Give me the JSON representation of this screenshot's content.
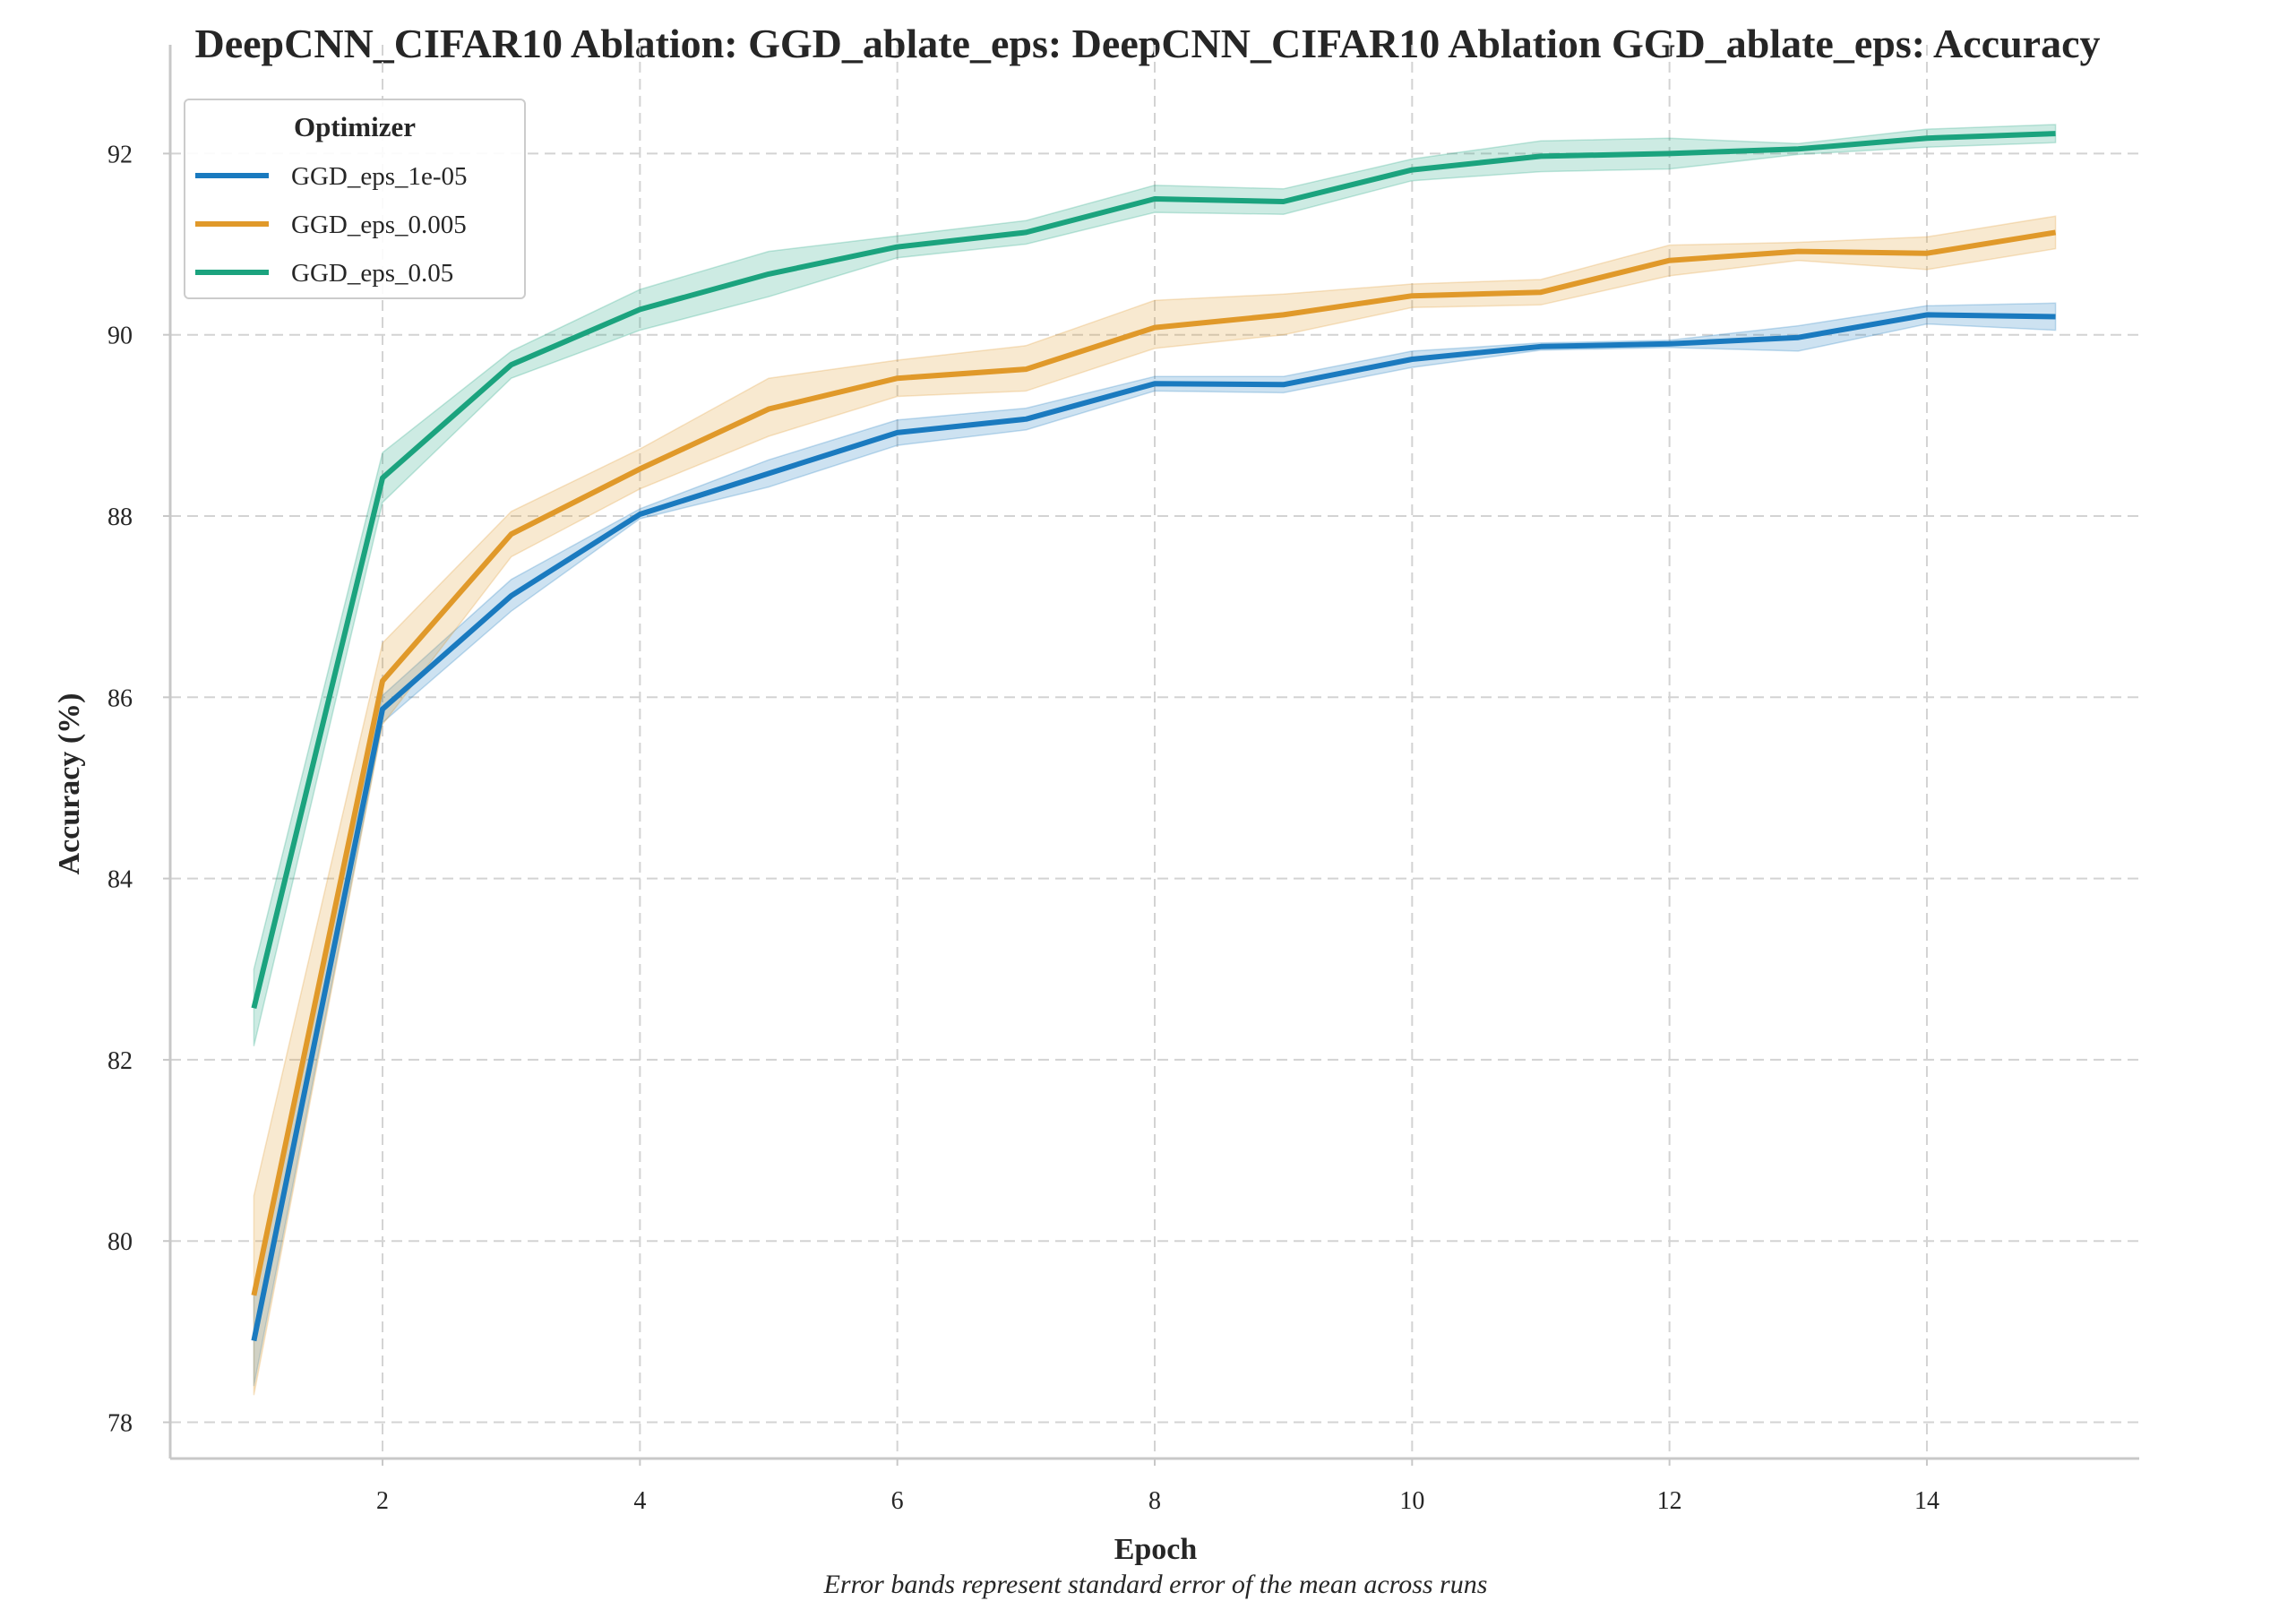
{
  "chart_data": {
    "type": "line",
    "title": "DeepCNN_CIFAR10 Ablation: GGD_ablate_eps: DeepCNN_CIFAR10 Ablation GGD_ablate_eps: Accuracy",
    "xlabel": "Epoch",
    "ylabel": "Accuracy (%)",
    "caption": "Error bands represent standard error of the mean across runs",
    "x": [
      1,
      2,
      3,
      4,
      5,
      6,
      7,
      8,
      9,
      10,
      11,
      12,
      13,
      14,
      15
    ],
    "xlim": [
      0.35,
      15.65
    ],
    "ylim": [
      77.6,
      93.2
    ],
    "xticks": [
      2,
      4,
      6,
      8,
      10,
      12,
      14
    ],
    "yticks": [
      78,
      80,
      82,
      84,
      86,
      88,
      90,
      92
    ],
    "grid": true,
    "legend": {
      "title": "Optimizer",
      "position": "top-left"
    },
    "series": [
      {
        "name": "GGD_eps_1e-05",
        "color": "#1a7abf",
        "values": [
          78.9,
          85.87,
          87.12,
          88.02,
          88.47,
          88.92,
          89.07,
          89.46,
          89.45,
          89.73,
          89.87,
          89.9,
          89.97,
          90.22,
          90.2
        ],
        "lower": [
          78.4,
          85.72,
          86.95,
          87.97,
          88.32,
          88.78,
          88.95,
          89.38,
          89.36,
          89.64,
          89.83,
          89.86,
          89.82,
          90.12,
          90.05
        ],
        "upper": [
          79.4,
          86.02,
          87.3,
          88.08,
          88.62,
          89.06,
          89.19,
          89.54,
          89.54,
          89.82,
          89.91,
          89.94,
          90.1,
          90.32,
          90.35
        ]
      },
      {
        "name": "GGD_eps_0.005",
        "color": "#e0992a",
        "values": [
          79.4,
          86.18,
          87.8,
          88.52,
          89.18,
          89.52,
          89.62,
          90.08,
          90.22,
          90.43,
          90.47,
          90.82,
          90.92,
          90.9,
          91.13
        ],
        "lower": [
          78.3,
          85.7,
          87.55,
          88.3,
          88.88,
          89.32,
          89.38,
          89.85,
          90.0,
          90.3,
          90.33,
          90.65,
          90.82,
          90.72,
          90.95
        ],
        "upper": [
          80.5,
          86.6,
          88.05,
          88.74,
          89.52,
          89.72,
          89.88,
          90.38,
          90.45,
          90.56,
          90.61,
          90.99,
          91.02,
          91.08,
          91.31
        ]
      },
      {
        "name": "GGD_eps_0.05",
        "color": "#1ba37e",
        "values": [
          82.57,
          88.42,
          89.67,
          90.28,
          90.67,
          90.97,
          91.13,
          91.5,
          91.47,
          91.82,
          91.97,
          92.0,
          92.05,
          92.17,
          92.22
        ],
        "lower": [
          82.15,
          88.15,
          89.52,
          90.05,
          90.42,
          90.85,
          91.0,
          91.35,
          91.33,
          91.7,
          91.8,
          91.83,
          91.99,
          92.07,
          92.12
        ],
        "upper": [
          83.0,
          88.7,
          89.82,
          90.5,
          90.92,
          91.09,
          91.26,
          91.65,
          91.61,
          91.94,
          92.14,
          92.17,
          92.11,
          92.27,
          92.32
        ]
      }
    ]
  }
}
